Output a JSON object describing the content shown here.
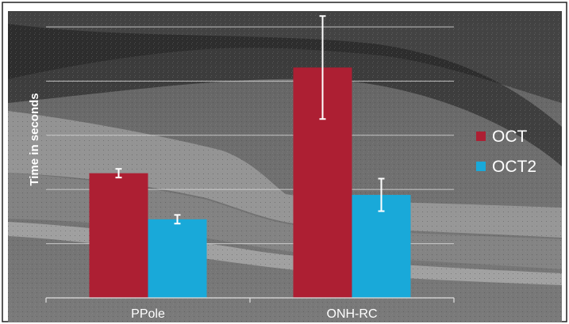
{
  "chart_data": {
    "type": "bar",
    "title": "",
    "xlabel": "",
    "ylabel": "Time in seconds",
    "categories": [
      "PPole",
      "ONH-RC"
    ],
    "series": [
      {
        "name": "OCT",
        "color": "#ad1f33",
        "values": [
          2.3,
          4.25
        ],
        "error": [
          0.08,
          0.95
        ]
      },
      {
        "name": "OCT2",
        "color": "#19a9d9",
        "values": [
          1.45,
          1.9
        ],
        "error": [
          0.08,
          0.3
        ]
      }
    ],
    "ylim": [
      0,
      5.35
    ],
    "grid": true,
    "legend": "right",
    "background": "OCT retinal scan image (grayscale)"
  }
}
